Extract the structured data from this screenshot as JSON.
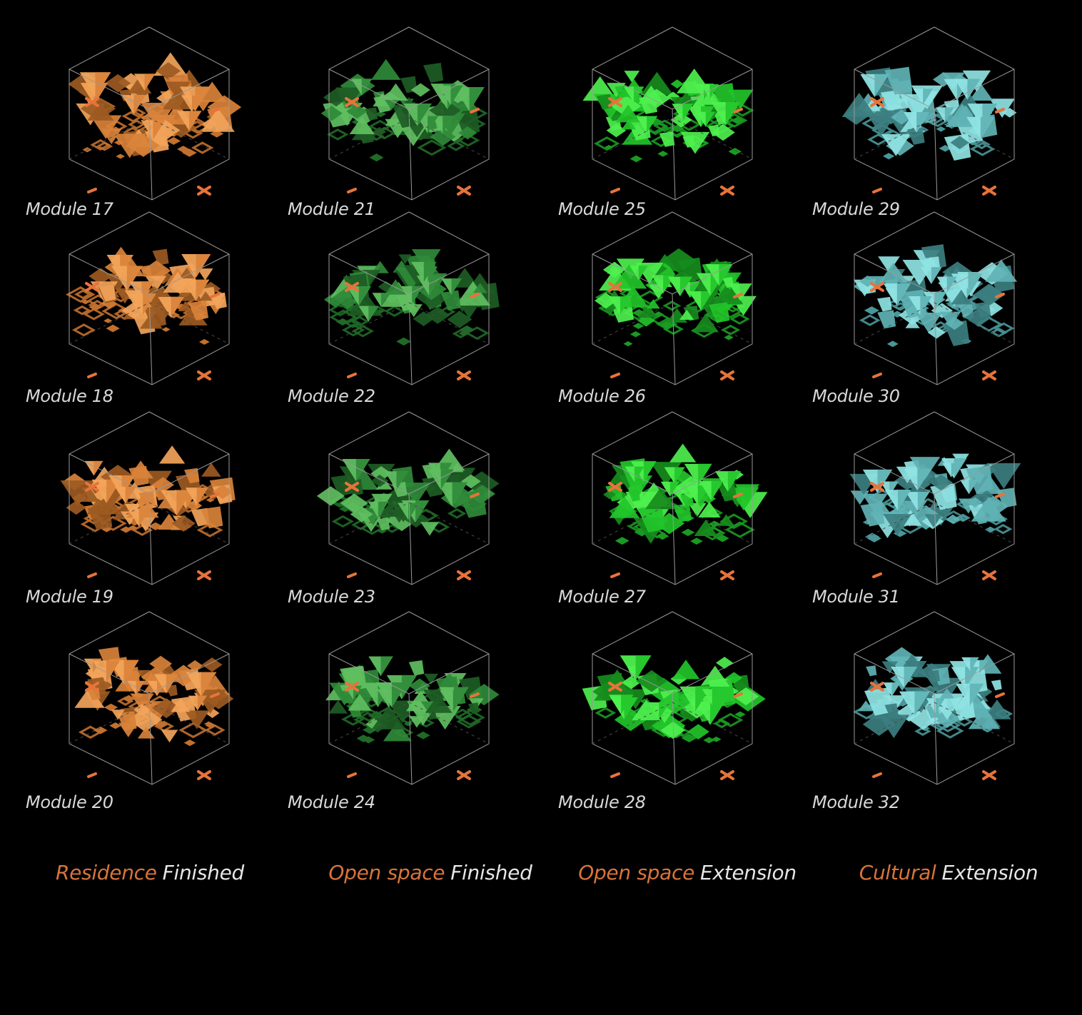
{
  "colors": {
    "background": "#000000",
    "frame": "#9a9a9a",
    "label": "#d9d9d9",
    "marker": "#e8733a",
    "category_highlight": "#d8743a",
    "category_state": "#e6e6e6"
  },
  "columns": [
    {
      "category": "Residence",
      "state": "Finished",
      "palette": {
        "face_light": "#f2a45a",
        "face_mid": "#d9823a",
        "face_dark": "#9c5a22",
        "floor": "#c2702e"
      },
      "modules": [
        {
          "label": "Module 17"
        },
        {
          "label": "Module 18"
        },
        {
          "label": "Module 19"
        },
        {
          "label": "Module 20"
        }
      ]
    },
    {
      "category": "Open space",
      "state": "Finished",
      "palette": {
        "face_light": "#5fbf60",
        "face_mid": "#2f8a38",
        "face_dark": "#1d5c24",
        "floor": "#1f6a27"
      },
      "modules": [
        {
          "label": "Module 21"
        },
        {
          "label": "Module 22"
        },
        {
          "label": "Module 23"
        },
        {
          "label": "Module 24"
        }
      ]
    },
    {
      "category": "Open space",
      "state": "Extension",
      "palette": {
        "face_light": "#4ef04e",
        "face_mid": "#22c42a",
        "face_dark": "#178c1d",
        "floor": "#1a9a22"
      },
      "modules": [
        {
          "label": "Module 25"
        },
        {
          "label": "Module 26"
        },
        {
          "label": "Module 27"
        },
        {
          "label": "Module 28"
        }
      ]
    },
    {
      "category": "Cultural",
      "state": "Extension",
      "palette": {
        "face_light": "#8fe3e3",
        "face_mid": "#5fb2b4",
        "face_dark": "#3c7e80",
        "floor": "#4a9698"
      },
      "modules": [
        {
          "label": "Module 29"
        },
        {
          "label": "Module 30"
        },
        {
          "label": "Module 31"
        },
        {
          "label": "Module 32"
        }
      ]
    }
  ]
}
